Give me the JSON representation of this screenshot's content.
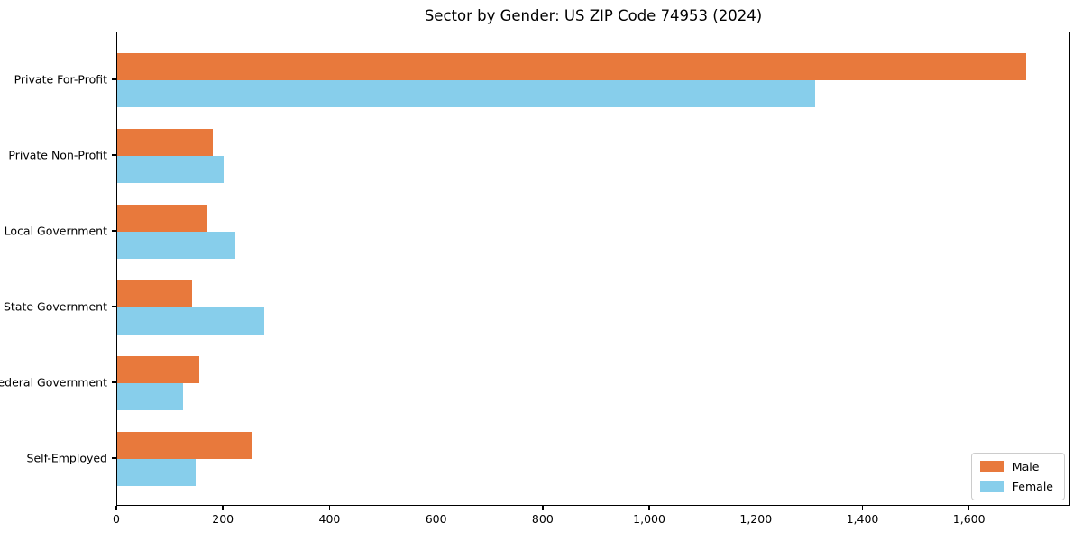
{
  "chart_data": {
    "type": "bar",
    "orientation": "horizontal",
    "title": "Sector by Gender: US ZIP Code 74953 (2024)",
    "categories": [
      "Private For-Profit",
      "Private Non-Profit",
      "Local Government",
      "State Government",
      "Federal Government",
      "Self-Employed"
    ],
    "series": [
      {
        "name": "Male",
        "color": "#E8793C",
        "values": [
          1705,
          180,
          170,
          141,
          154,
          254
        ]
      },
      {
        "name": "Female",
        "color": "#87CEEB",
        "values": [
          1310,
          200,
          222,
          275,
          123,
          147
        ]
      }
    ],
    "xlim": [
      0,
      1790
    ],
    "xticks": [
      {
        "value": 0,
        "label": "0"
      },
      {
        "value": 200,
        "label": "200"
      },
      {
        "value": 400,
        "label": "400"
      },
      {
        "value": 600,
        "label": "600"
      },
      {
        "value": 800,
        "label": "800"
      },
      {
        "value": 1000,
        "label": "1,000"
      },
      {
        "value": 1200,
        "label": "1,200"
      },
      {
        "value": 1400,
        "label": "1,400"
      },
      {
        "value": 1600,
        "label": "1,600"
      }
    ],
    "xlabel": "",
    "ylabel": "",
    "grid": false,
    "legend_position": "lower right"
  }
}
